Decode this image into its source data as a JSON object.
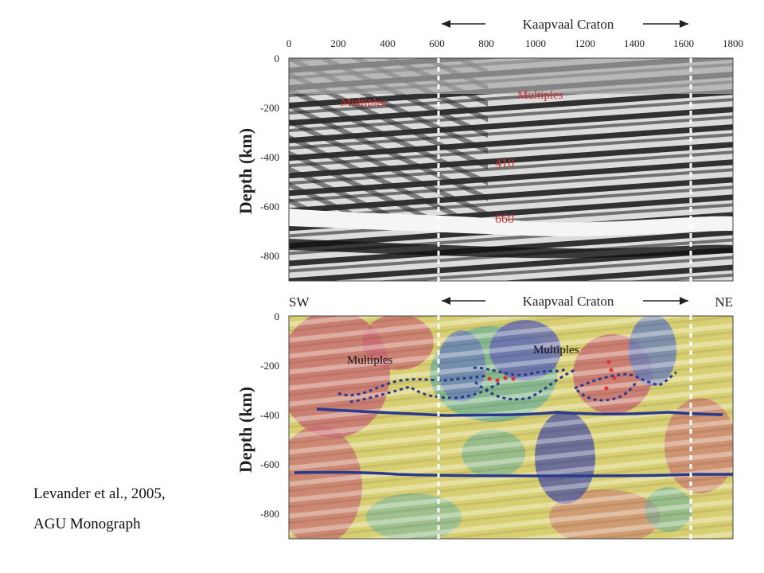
{
  "citation": {
    "line1": "Levander et al., 2005,",
    "line2": "AGU Monograph"
  },
  "top_panel": {
    "region_label": "Kaapvaal Craton",
    "x_ticks": [
      "0",
      "200",
      "400",
      "600",
      "800",
      "1000",
      "1200",
      "1400",
      "1600",
      "1800"
    ],
    "y_ticks": [
      "0",
      "-200",
      "-400",
      "-600",
      "-800"
    ],
    "y_label": "Depth (km)",
    "annotations": [
      "Multiples",
      "Multiples",
      "410",
      "660"
    ]
  },
  "bottom_panel": {
    "region_label": "Kaapvaal Craton",
    "left_label": "SW",
    "right_label": "NE",
    "y_ticks": [
      "0",
      "-200",
      "-400",
      "-600",
      "-800"
    ],
    "y_label": "Depth (km)",
    "annotations": [
      "Multiples",
      "Multiples"
    ]
  },
  "colors": {
    "annotation_red": "#d03030",
    "interface_blue": "#2a3a8c",
    "craton_marker": "#ffffff"
  }
}
